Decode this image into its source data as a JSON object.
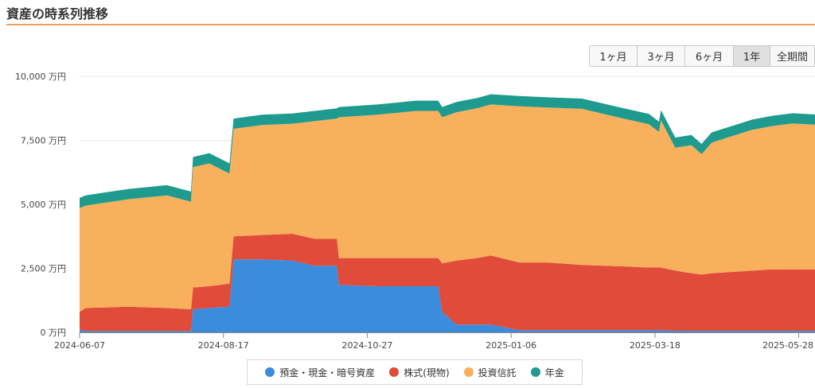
{
  "header": {
    "title": "資産の時系列推移"
  },
  "range_buttons": [
    {
      "label": "1ヶ月",
      "active": false
    },
    {
      "label": "3ヶ月",
      "active": false
    },
    {
      "label": "6ヶ月",
      "active": false
    },
    {
      "label": "1年",
      "active": true
    },
    {
      "label": "全期間",
      "active": false
    }
  ],
  "chart_data": {
    "type": "area",
    "stacked": true,
    "xlabel": "",
    "ylabel": "",
    "ylim": [
      0,
      10000
    ],
    "y_ticks": [
      0,
      2500,
      5000,
      7500,
      10000
    ],
    "y_tick_labels": [
      "0 万円",
      "2,500 万円",
      "5,000 万円",
      "7,500 万円",
      "10,000 万円"
    ],
    "x_range": [
      "2024-06-07",
      "2025-06-05"
    ],
    "x_ticks": [
      "2024-06-07",
      "2024-08-17",
      "2024-10-27",
      "2025-01-06",
      "2025-03-18",
      "2025-05-28"
    ],
    "grid": "horizontal",
    "legend_position": "bottom",
    "x": [
      "2024-06-07",
      "2024-06-10",
      "2024-07-01",
      "2024-07-20",
      "2024-08-01",
      "2024-08-02",
      "2024-08-10",
      "2024-08-20",
      "2024-08-22",
      "2024-09-05",
      "2024-09-20",
      "2024-10-01",
      "2024-10-12",
      "2024-10-13",
      "2024-11-01",
      "2024-11-20",
      "2024-12-01",
      "2024-12-03",
      "2024-12-10",
      "2024-12-20",
      "2024-12-27",
      "2025-01-10",
      "2025-01-24",
      "2025-02-10",
      "2025-03-01",
      "2025-03-15",
      "2025-03-20",
      "2025-03-21",
      "2025-03-28",
      "2025-04-05",
      "2025-04-10",
      "2025-04-15",
      "2025-04-25",
      "2025-05-05",
      "2025-05-15",
      "2025-05-25",
      "2025-06-05"
    ],
    "series": [
      {
        "name": "預金・現金・暗号資産",
        "color": "#3c8cdc",
        "values": [
          100,
          50,
          50,
          50,
          50,
          900,
          950,
          1000,
          2850,
          2850,
          2800,
          2600,
          2600,
          1850,
          1800,
          1800,
          1800,
          800,
          300,
          300,
          300,
          80,
          80,
          80,
          80,
          80,
          80,
          80,
          60,
          60,
          60,
          60,
          60,
          60,
          60,
          60,
          60
        ]
      },
      {
        "name": "株式(現物)",
        "color": "#e04b3a",
        "values": [
          700,
          900,
          950,
          900,
          850,
          850,
          850,
          900,
          900,
          950,
          1050,
          1050,
          1050,
          1050,
          1100,
          1100,
          1100,
          1900,
          2500,
          2600,
          2700,
          2650,
          2650,
          2550,
          2500,
          2450,
          2450,
          2450,
          2350,
          2250,
          2200,
          2250,
          2300,
          2350,
          2400,
          2400,
          2400
        ]
      },
      {
        "name": "投資信託",
        "color": "#f9b05d",
        "values": [
          4050,
          4000,
          4200,
          4400,
          4200,
          4700,
          4800,
          4300,
          4200,
          4300,
          4300,
          4600,
          4700,
          5500,
          5600,
          5750,
          5750,
          5700,
          5800,
          5850,
          5900,
          6100,
          6050,
          6100,
          5800,
          5600,
          5300,
          5750,
          4800,
          5000,
          4700,
          5100,
          5300,
          5500,
          5600,
          5700,
          5650
        ]
      },
      {
        "name": "年金",
        "color": "#1f9a8e",
        "values": [
          400,
          400,
          400,
          400,
          400,
          400,
          400,
          400,
          400,
          400,
          400,
          400,
          400,
          400,
          400,
          400,
          400,
          400,
          400,
          400,
          400,
          400,
          400,
          400,
          400,
          400,
          400,
          400,
          400,
          400,
          400,
          400,
          400,
          400,
          400,
          400,
          400
        ]
      }
    ]
  }
}
